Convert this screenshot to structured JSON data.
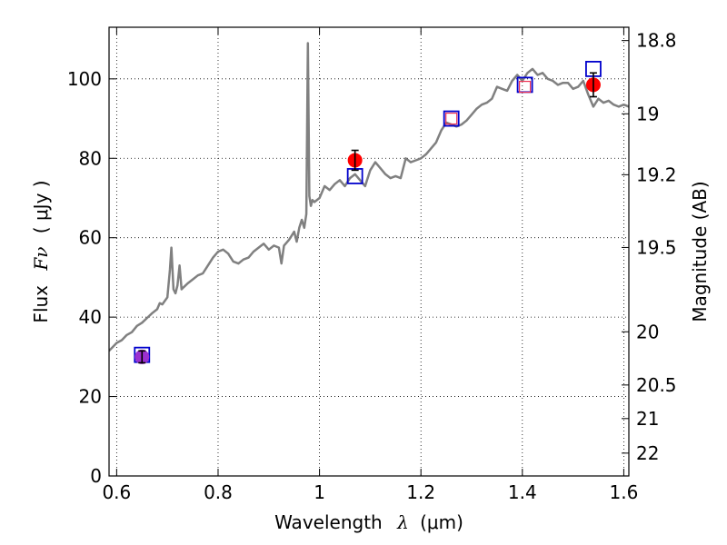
{
  "chart_data": {
    "type": "line",
    "xlabel": "Wavelength",
    "xlabel_symbol": "λ",
    "xlabel_unit": "(μm)",
    "ylabel": "Flux",
    "ylabel_symbol": "Fν",
    "ylabel_unit": "( μJy )",
    "y2label": "Magnitude (AB)",
    "xlim": [
      0.585,
      1.61
    ],
    "ylim": [
      0,
      113
    ],
    "grid": true,
    "x_ticks": [
      {
        "value": 0.6,
        "label": "0.6"
      },
      {
        "value": 0.8,
        "label": "0.8"
      },
      {
        "value": 1.0,
        "label": "1"
      },
      {
        "value": 1.2,
        "label": "1.2"
      },
      {
        "value": 1.4,
        "label": "1.4"
      },
      {
        "value": 1.6,
        "label": "1.6"
      }
    ],
    "y_ticks": [
      {
        "value": 0,
        "label": "0"
      },
      {
        "value": 20,
        "label": "20"
      },
      {
        "value": 40,
        "label": "40"
      },
      {
        "value": 60,
        "label": "60"
      },
      {
        "value": 80,
        "label": "80"
      },
      {
        "value": 100,
        "label": "100"
      }
    ],
    "y2_ticks": [
      {
        "value": 18.8,
        "label": "18.8"
      },
      {
        "value": 19.0,
        "label": "19"
      },
      {
        "value": 19.2,
        "label": "19.2"
      },
      {
        "value": 19.5,
        "label": "19.5"
      },
      {
        "value": 20.0,
        "label": "20"
      },
      {
        "value": 20.5,
        "label": "20.5"
      },
      {
        "value": 21.0,
        "label": "21"
      },
      {
        "value": 22.0,
        "label": "22"
      }
    ],
    "series": [
      {
        "kind": "spectrum",
        "color": "#808080",
        "x": [
          0.585,
          0.6,
          0.61,
          0.62,
          0.63,
          0.64,
          0.65,
          0.66,
          0.67,
          0.68,
          0.685,
          0.69,
          0.7,
          0.705,
          0.708,
          0.712,
          0.716,
          0.72,
          0.724,
          0.728,
          0.732,
          0.74,
          0.75,
          0.76,
          0.77,
          0.78,
          0.79,
          0.8,
          0.81,
          0.82,
          0.83,
          0.84,
          0.85,
          0.86,
          0.87,
          0.88,
          0.89,
          0.9,
          0.91,
          0.92,
          0.925,
          0.93,
          0.94,
          0.95,
          0.955,
          0.96,
          0.965,
          0.97,
          0.974,
          0.977,
          0.98,
          0.983,
          0.986,
          0.99,
          1.0,
          1.01,
          1.02,
          1.03,
          1.04,
          1.05,
          1.06,
          1.07,
          1.08,
          1.09,
          1.1,
          1.11,
          1.12,
          1.13,
          1.14,
          1.15,
          1.16,
          1.17,
          1.18,
          1.19,
          1.2,
          1.21,
          1.22,
          1.23,
          1.24,
          1.25,
          1.26,
          1.27,
          1.28,
          1.29,
          1.3,
          1.31,
          1.32,
          1.33,
          1.34,
          1.35,
          1.36,
          1.37,
          1.38,
          1.39,
          1.4,
          1.41,
          1.42,
          1.43,
          1.44,
          1.45,
          1.46,
          1.47,
          1.48,
          1.49,
          1.5,
          1.51,
          1.52,
          1.53,
          1.54,
          1.55,
          1.56,
          1.57,
          1.58,
          1.59,
          1.6,
          1.61
        ],
        "y": [
          31.5,
          33.5,
          34.2,
          35.5,
          36.2,
          37.8,
          38.6,
          39.8,
          41.0,
          42.0,
          43.5,
          43.2,
          45.0,
          52.0,
          57.5,
          47.0,
          46.0,
          48.0,
          53.0,
          47.0,
          47.5,
          48.5,
          49.5,
          50.5,
          51.0,
          53.0,
          55.0,
          56.5,
          57.0,
          56.0,
          54.0,
          53.5,
          54.5,
          55.0,
          56.5,
          57.5,
          58.5,
          57.0,
          58.0,
          57.5,
          53.5,
          58.0,
          59.5,
          61.5,
          59.0,
          62.5,
          64.5,
          62.5,
          66.0,
          109.0,
          70.5,
          68.0,
          69.5,
          69.0,
          70.0,
          73.0,
          72.0,
          73.5,
          74.5,
          73.0,
          75.0,
          76.0,
          74.5,
          73.0,
          77.0,
          79.0,
          77.5,
          76.0,
          75.0,
          75.5,
          75.0,
          80.0,
          79.0,
          79.5,
          80.0,
          81.0,
          82.5,
          84.0,
          87.0,
          89.0,
          88.5,
          88.0,
          88.5,
          89.5,
          91.0,
          92.5,
          93.5,
          94.0,
          95.0,
          98.0,
          97.5,
          97.0,
          99.5,
          101.0,
          99.5,
          101.5,
          102.5,
          101.0,
          101.5,
          100.0,
          99.5,
          98.5,
          99.0,
          99.0,
          97.5,
          98.0,
          99.5,
          96.0,
          93.0,
          95.0,
          94.0,
          94.5,
          93.5,
          93.0,
          93.5,
          93.0
        ]
      },
      {
        "kind": "observed",
        "color": "#ff0000",
        "points": [
          {
            "x": 1.07,
            "y": 79.5,
            "err": 2.5
          },
          {
            "x": 1.54,
            "y": 98.5,
            "err": 3.0
          }
        ]
      },
      {
        "kind": "observed",
        "color": "#9b30d0",
        "points": [
          {
            "x": 0.65,
            "y": 30.0,
            "err": 1.5
          }
        ]
      },
      {
        "kind": "model-band",
        "color": "#0000cc",
        "points": [
          {
            "x": 0.65,
            "y": 30.5
          },
          {
            "x": 1.07,
            "y": 75.5
          },
          {
            "x": 1.26,
            "y": 90.0
          },
          {
            "x": 1.405,
            "y": 98.5
          },
          {
            "x": 1.54,
            "y": 102.5
          }
        ]
      },
      {
        "kind": "model-band-inner",
        "color": "#ee3355",
        "points": [
          {
            "x": 1.26,
            "y": 90.0
          },
          {
            "x": 1.405,
            "y": 98.0
          }
        ]
      }
    ]
  }
}
